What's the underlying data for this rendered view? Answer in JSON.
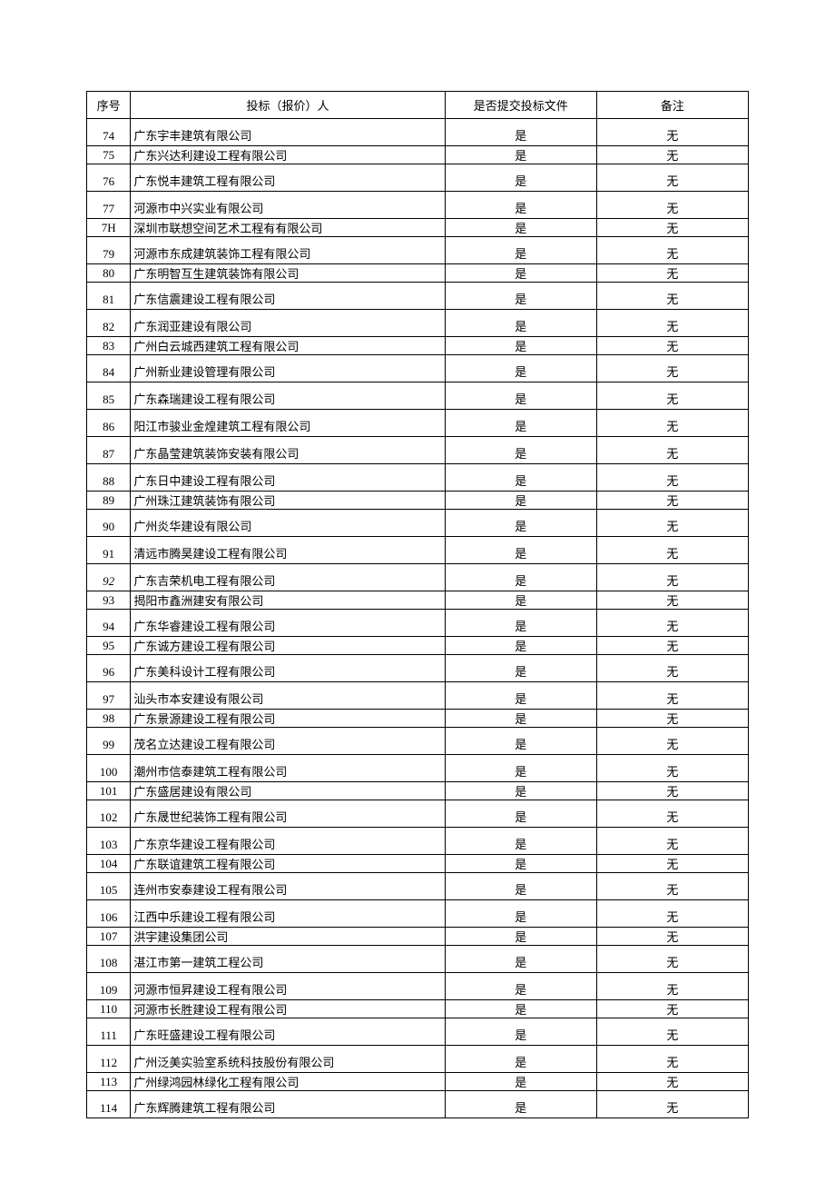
{
  "table": {
    "headers": {
      "seq": "序号",
      "bidder": "投标（报价）人",
      "submit": "是否提交投标文件",
      "remark": "备注"
    },
    "column_widths": {
      "seq": 48,
      "bidder": 344,
      "submit": 166,
      "remark": 166
    },
    "colors": {
      "border": "#000000",
      "text": "#000000",
      "background": "#ffffff"
    },
    "font_size": 13,
    "rows": [
      {
        "seq": "74",
        "bidder": "广东宇丰建筑有限公司",
        "submit": "是",
        "remark": "无",
        "tall": true
      },
      {
        "seq": "75",
        "bidder": "广东兴达利建设工程有限公司",
        "submit": "是",
        "remark": "无",
        "tall": false
      },
      {
        "seq": "76",
        "bidder": "广东悦丰建筑工程有限公司",
        "submit": "是",
        "remark": "无",
        "tall": true
      },
      {
        "seq": "77",
        "bidder": "河源市中兴实业有限公司",
        "submit": "是",
        "remark": "无",
        "tall": true
      },
      {
        "seq": "7H",
        "bidder": "深圳市联想空间艺术工程有有限公司",
        "submit": "是",
        "remark": "无",
        "tall": false
      },
      {
        "seq": "79",
        "bidder": "河源市东成建筑装饰工程有限公司",
        "submit": "是",
        "remark": "无",
        "tall": true
      },
      {
        "seq": "80",
        "bidder": "广东明智互生建筑装饰有限公司",
        "submit": "是",
        "remark": "无",
        "tall": false
      },
      {
        "seq": "81",
        "bidder": "广东信震建设工程有限公司",
        "submit": "是",
        "remark": "无",
        "tall": true
      },
      {
        "seq": "82",
        "bidder": "广东润亚建设有限公司",
        "submit": "是",
        "remark": "无",
        "tall": true
      },
      {
        "seq": "83",
        "bidder": "广州白云城西建筑工程有限公司",
        "submit": "是",
        "remark": "无",
        "tall": false
      },
      {
        "seq": "84",
        "bidder": "广州新业建设管理有限公司",
        "submit": "是",
        "remark": "无",
        "tall": true
      },
      {
        "seq": "85",
        "bidder": "广东森瑞建设工程有限公司",
        "submit": "是",
        "remark": "无",
        "tall": true
      },
      {
        "seq": "86",
        "bidder": "阳江市骏业金煌建筑工程有限公司",
        "submit": "是",
        "remark": "无",
        "tall": true
      },
      {
        "seq": "87",
        "bidder": "广东晶莹建筑装饰安装有限公司",
        "submit": "是",
        "remark": "无",
        "tall": true
      },
      {
        "seq": "88",
        "bidder": "广东日中建设工程有限公司",
        "submit": "是",
        "remark": "无",
        "tall": true
      },
      {
        "seq": "89",
        "bidder": "广州珠江建筑装饰有限公司",
        "submit": "是",
        "remark": "无",
        "tall": false
      },
      {
        "seq": "90",
        "bidder": "广州炎华建设有限公司",
        "submit": "是",
        "remark": "无",
        "tall": true
      },
      {
        "seq": "91",
        "bidder": "清远市腾昊建设工程有限公司",
        "submit": "是",
        "remark": "无",
        "tall": true
      },
      {
        "seq": "92",
        "bidder": "广东吉荣机电工程有限公司",
        "submit": "是",
        "remark": "无",
        "tall": true,
        "italic_seq": true
      },
      {
        "seq": "93",
        "bidder": "揭阳市鑫洲建安有限公司",
        "submit": "是",
        "remark": "无",
        "tall": false
      },
      {
        "seq": "94",
        "bidder": "广东华睿建设工程有限公司",
        "submit": "是",
        "remark": "无",
        "tall": true
      },
      {
        "seq": "95",
        "bidder": "广东诚方建设工程有限公司",
        "submit": "是",
        "remark": "无",
        "tall": false
      },
      {
        "seq": "96",
        "bidder": "广东美科设计工程有限公司",
        "submit": "是",
        "remark": "无",
        "tall": true
      },
      {
        "seq": "97",
        "bidder": "汕头市本安建设有限公司",
        "submit": "是",
        "remark": "无",
        "tall": true
      },
      {
        "seq": "98",
        "bidder": "广东景源建设工程有限公司",
        "submit": "是",
        "remark": "无",
        "tall": false
      },
      {
        "seq": "99",
        "bidder": "茂名立达建设工程有限公司",
        "submit": "是",
        "remark": "无",
        "tall": true
      },
      {
        "seq": "100",
        "bidder": "潮州市信泰建筑工程有限公司",
        "submit": "是",
        "remark": "无",
        "tall": true
      },
      {
        "seq": "101",
        "bidder": "广东盛居建设有限公司",
        "submit": "是",
        "remark": "无",
        "tall": false
      },
      {
        "seq": "102",
        "bidder": "广东晟世纪装饰工程有限公司",
        "submit": "是",
        "remark": "无",
        "tall": true
      },
      {
        "seq": "103",
        "bidder": "广东京华建设工程有限公司",
        "submit": "是",
        "remark": "无",
        "tall": true
      },
      {
        "seq": "104",
        "bidder": "广东联谊建筑工程有限公司",
        "submit": "是",
        "remark": "无",
        "tall": false
      },
      {
        "seq": "105",
        "bidder": "连州市安泰建设工程有限公司",
        "submit": "是",
        "remark": "无",
        "tall": true
      },
      {
        "seq": "106",
        "bidder": "江西中乐建设工程有限公司",
        "submit": "是",
        "remark": "无",
        "tall": true
      },
      {
        "seq": "107",
        "bidder": "洪宇建设集团公司",
        "submit": "是",
        "remark": "无",
        "tall": false
      },
      {
        "seq": "108",
        "bidder": "湛江市第一建筑工程公司",
        "submit": "是",
        "remark": "无",
        "tall": true
      },
      {
        "seq": "109",
        "bidder": "河源市恒昇建设工程有限公司",
        "submit": "是",
        "remark": "无",
        "tall": true
      },
      {
        "seq": "110",
        "bidder": "河源市长胜建设工程有限公司",
        "submit": "是",
        "remark": "无",
        "tall": false
      },
      {
        "seq": "111",
        "bidder": "广东旺盛建设工程有限公司",
        "submit": "是",
        "remark": "无",
        "tall": true
      },
      {
        "seq": "112",
        "bidder": "广州泛美实验室系统科技股份有限公司",
        "submit": "是",
        "remark": "无",
        "tall": true
      },
      {
        "seq": "113",
        "bidder": "广州绿鸿园林绿化工程有限公司",
        "submit": "是",
        "remark": "无",
        "tall": false
      },
      {
        "seq": "114",
        "bidder": "广东辉腾建筑工程有限公司",
        "submit": "是",
        "remark": "无",
        "tall": true
      }
    ]
  }
}
